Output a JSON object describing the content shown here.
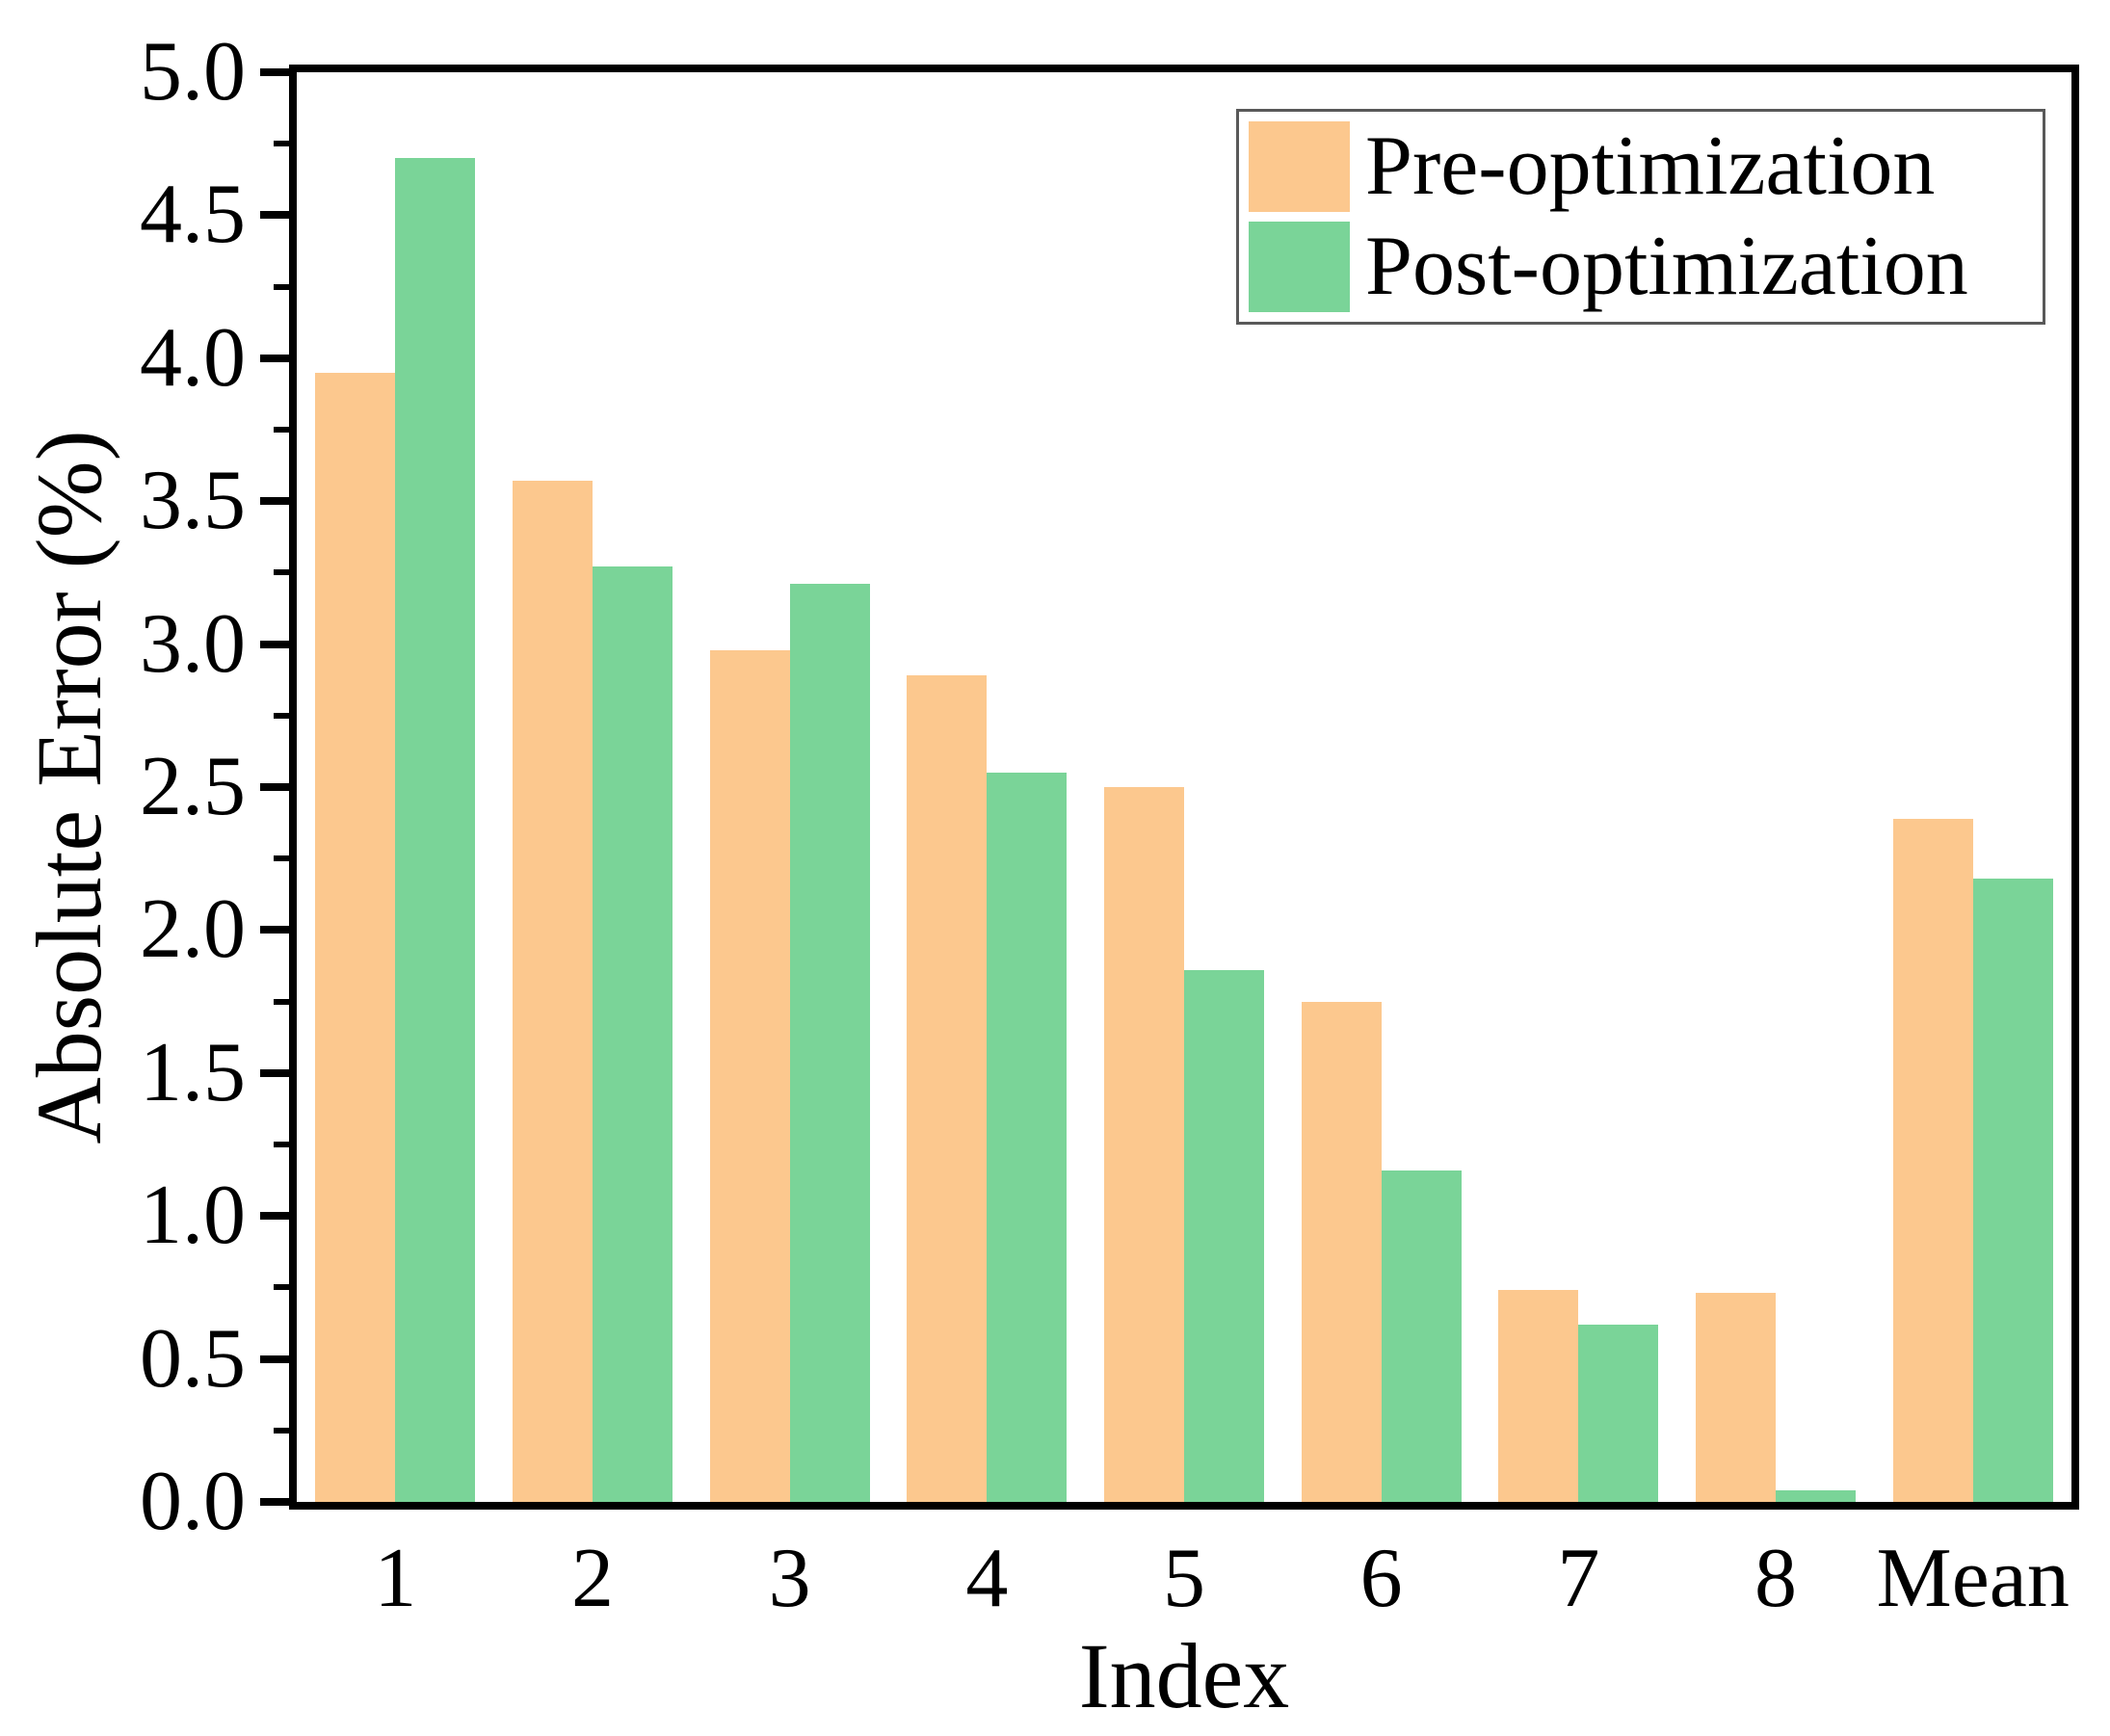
{
  "figure": {
    "background": "#ffffff",
    "text_color": "#000000",
    "axis_color": "#000000",
    "legend_border_color": "#595959"
  },
  "axes": {
    "ylabel": "Absolute Error (%)",
    "xlabel": "Index",
    "y_major_tick_labels": [
      "0.0",
      "0.5",
      "1.0",
      "1.5",
      "2.0",
      "2.5",
      "3.0",
      "3.5",
      "4.0",
      "4.5",
      "5.0"
    ],
    "x_tick_labels": [
      "1",
      "2",
      "3",
      "4",
      "5",
      "6",
      "7",
      "8",
      "Mean"
    ]
  },
  "legend": {
    "entries": [
      {
        "label": "Pre-optimization",
        "color": "#FCC88E"
      },
      {
        "label": "Post-optimization",
        "color": "#7AD498"
      }
    ]
  },
  "chart_data": {
    "type": "bar",
    "title": "",
    "xlabel": "Index",
    "ylabel": "Absolute Error (%)",
    "categories": [
      "1",
      "2",
      "3",
      "4",
      "5",
      "6",
      "7",
      "8",
      "Mean"
    ],
    "series": [
      {
        "name": "Pre-optimization",
        "color": "#FCC88E",
        "values": [
          3.95,
          3.57,
          2.98,
          2.89,
          2.5,
          1.75,
          0.74,
          0.73,
          2.39
        ]
      },
      {
        "name": "Post-optimization",
        "color": "#7AD498",
        "values": [
          4.7,
          3.27,
          3.21,
          2.55,
          1.86,
          1.16,
          0.62,
          0.04,
          2.18
        ]
      }
    ],
    "ylim": [
      0.0,
      5.0
    ],
    "y_major_step": 0.5,
    "y_minor_step": 0.25,
    "grid": false,
    "legend_position": "top-right",
    "bar_width_fraction": 0.405
  }
}
